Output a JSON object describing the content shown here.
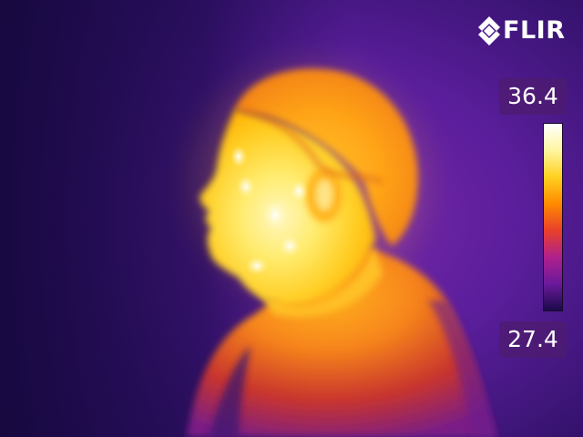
{
  "logo": {
    "text": "FLIR",
    "icon": "flir-diamond-logo"
  },
  "scale": {
    "max_label": "36.4",
    "min_label": "27.4",
    "palette": "iron",
    "colors": [
      "#ffffff",
      "#fff6a0",
      "#ffd020",
      "#ff8a00",
      "#e8402a",
      "#b0208c",
      "#6a1a9a",
      "#1a0a4a"
    ]
  },
  "image": {
    "subject": "thermal-profile-portrait",
    "background_color": "#4a1a8e"
  }
}
